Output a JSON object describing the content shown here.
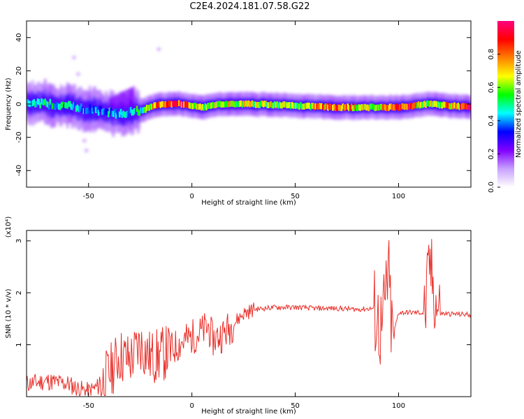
{
  "title": "C2E4.2024.181.07.58.G22",
  "chart_data": [
    {
      "type": "heatmap",
      "xlabel": "Height of straight line (km)",
      "ylabel": "Frequency (Hz)",
      "xlim": [
        -80,
        135
      ],
      "ylim": [
        -50,
        50
      ],
      "xticks": [
        -50,
        0,
        50,
        100
      ],
      "yticks": [
        -40,
        -20,
        0,
        20,
        40
      ],
      "colorbar": {
        "label": "Normalized spectral amplitude",
        "range": [
          0.0,
          1.0
        ],
        "ticks": [
          0.0,
          0.2,
          0.4,
          0.6,
          0.8
        ],
        "colors": [
          "#ffffff",
          "#c8a0ff",
          "#8000ff",
          "#0000ff",
          "#00ffff",
          "#00ff00",
          "#ffff00",
          "#ff8000",
          "#ff0000",
          "#ff0080"
        ]
      },
      "ridge": [
        {
          "x": -80,
          "f": 1,
          "amp": 0.45
        },
        {
          "x": -70,
          "f": 0,
          "amp": 0.5
        },
        {
          "x": -60,
          "f": -1,
          "amp": 0.45
        },
        {
          "x": -52,
          "f": -3,
          "amp": 0.4
        },
        {
          "x": -45,
          "f": -4,
          "amp": 0.4
        },
        {
          "x": -35,
          "f": -6,
          "amp": 0.45
        },
        {
          "x": -25,
          "f": -4,
          "amp": 0.5
        },
        {
          "x": -15,
          "f": 0,
          "amp": 0.85
        },
        {
          "x": -5,
          "f": 0,
          "amp": 0.9
        },
        {
          "x": 5,
          "f": -2,
          "amp": 0.6
        },
        {
          "x": 15,
          "f": 0,
          "amp": 0.65
        },
        {
          "x": 30,
          "f": 0,
          "amp": 0.65
        },
        {
          "x": 50,
          "f": -1,
          "amp": 0.6
        },
        {
          "x": 70,
          "f": -2,
          "amp": 0.85
        },
        {
          "x": 90,
          "f": -2,
          "amp": 0.6
        },
        {
          "x": 100,
          "f": -2,
          "amp": 0.95
        },
        {
          "x": 115,
          "f": 0,
          "amp": 0.6
        },
        {
          "x": 135,
          "f": -2,
          "amp": 0.9
        }
      ]
    },
    {
      "type": "line",
      "xlabel": "Height of straight line (km)",
      "ylabel": "SNR (10 * v/v)",
      "scale_note": "(x10⁴)",
      "xlim": [
        -80,
        135
      ],
      "ylim": [
        0,
        3.2
      ],
      "xticks": [
        -50,
        0,
        50,
        100
      ],
      "yticks": [
        1,
        2,
        3
      ],
      "color": "#e8302a",
      "series": [
        {
          "name": "SNR",
          "x": [
            -80,
            -70,
            -60,
            -55,
            -50,
            -45,
            -40,
            -35,
            -30,
            -25,
            -20,
            -15,
            -10,
            -5,
            0,
            5,
            8,
            10,
            15,
            20,
            25,
            30,
            40,
            50,
            60,
            70,
            80,
            88,
            92,
            95,
            97,
            100,
            110,
            113,
            115,
            118,
            120,
            135
          ],
          "values": [
            0.25,
            0.3,
            0.25,
            0.15,
            0.1,
            0.2,
            0.45,
            0.8,
            0.7,
            1.0,
            0.75,
            0.8,
            0.9,
            1.05,
            1.15,
            1.25,
            1.35,
            1.1,
            1.2,
            1.4,
            1.6,
            1.68,
            1.72,
            1.72,
            1.7,
            1.7,
            1.68,
            1.7,
            1.2,
            2.4,
            1.1,
            1.62,
            1.62,
            1.6,
            2.6,
            1.8,
            1.6,
            1.58
          ]
        }
      ]
    }
  ]
}
